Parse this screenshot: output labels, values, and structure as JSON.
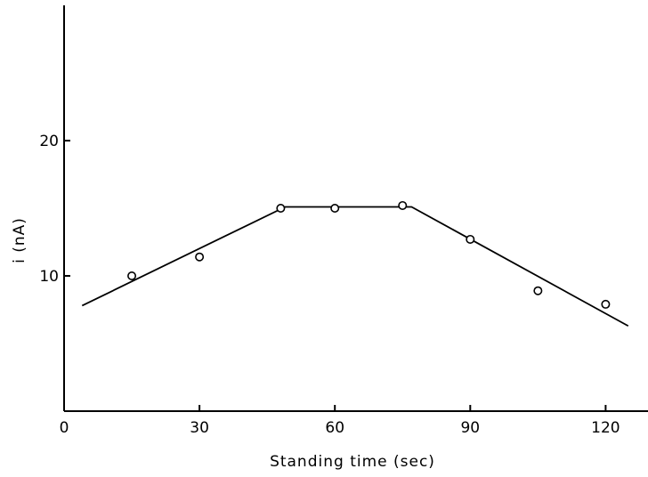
{
  "chart_data": {
    "type": "scatter",
    "xlabel": "Standing time (sec)",
    "ylabel": "i (nA)",
    "xlim": [
      0,
      130
    ],
    "ylim": [
      0,
      30
    ],
    "x_ticks": [
      {
        "value": 0,
        "label": "0"
      },
      {
        "value": 30,
        "label": "30"
      },
      {
        "value": 60,
        "label": "60"
      },
      {
        "value": 90,
        "label": "90"
      },
      {
        "value": 120,
        "label": "120"
      }
    ],
    "y_ticks": [
      {
        "value": 10,
        "label": "10"
      },
      {
        "value": 20,
        "label": "20"
      }
    ],
    "points": [
      {
        "x": 15,
        "y": 10.0
      },
      {
        "x": 30,
        "y": 11.4
      },
      {
        "x": 48,
        "y": 15.0
      },
      {
        "x": 60,
        "y": 15.0
      },
      {
        "x": 75,
        "y": 15.2
      },
      {
        "x": 90,
        "y": 12.7
      },
      {
        "x": 105,
        "y": 8.9
      },
      {
        "x": 120,
        "y": 7.9
      }
    ],
    "fit_line": [
      {
        "x": 4,
        "y": 7.8
      },
      {
        "x": 49,
        "y": 15.1
      },
      {
        "x": 77,
        "y": 15.1
      },
      {
        "x": 125,
        "y": 6.3
      }
    ],
    "grid": false,
    "legend": "none"
  }
}
